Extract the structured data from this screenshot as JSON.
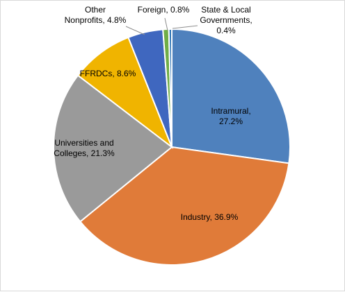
{
  "chart_data": {
    "type": "pie",
    "title": "",
    "slices": [
      {
        "name": "Intramural",
        "value": 27.2,
        "lines": [
          "Intramural,",
          "27.2%"
        ],
        "color": "#4f81bd"
      },
      {
        "name": "Industry",
        "value": 36.9,
        "lines": [
          "Industry, 36.9%"
        ],
        "color": "#e07b39"
      },
      {
        "name": "Universities and Colleges",
        "value": 21.3,
        "lines": [
          "Universities and",
          "Colleges, 21.3%"
        ],
        "color": "#9a9a9a"
      },
      {
        "name": "FFRDCs",
        "value": 8.6,
        "lines": [
          "FFRDCs, 8.6%"
        ],
        "color": "#f0b400"
      },
      {
        "name": "Other Nonprofits",
        "value": 4.8,
        "lines": [
          "Other",
          "Nonprofits, 4.8%"
        ],
        "color": "#3f67bf"
      },
      {
        "name": "Foreign",
        "value": 0.8,
        "lines": [
          "Foreign, 0.8%"
        ],
        "color": "#70ad47"
      },
      {
        "name": "State & Local Governments",
        "value": 0.4,
        "lines": [
          "State & Local",
          "Governments,",
          "0.4%"
        ],
        "color": "#2e75b6"
      }
    ],
    "start_angle": "12 o'clock",
    "direction": "clockwise",
    "legend": "none"
  }
}
